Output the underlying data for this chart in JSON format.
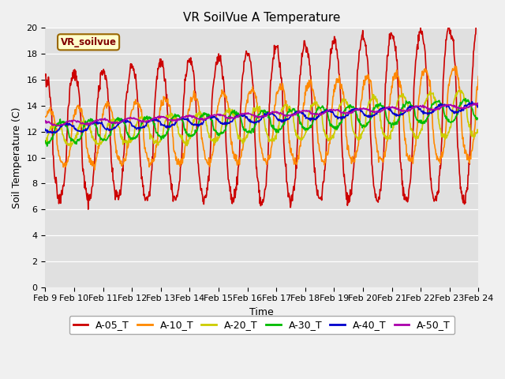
{
  "title": "VR SoilVue A Temperature",
  "xlabel": "Time",
  "ylabel": "Soil Temperature (C)",
  "ylim": [
    0,
    20
  ],
  "yticks": [
    0,
    2,
    4,
    6,
    8,
    10,
    12,
    14,
    16,
    18,
    20
  ],
  "x_labels": [
    "Feb 9",
    "Feb 10",
    "Feb 11",
    "Feb 12",
    "Feb 13",
    "Feb 14",
    "Feb 15",
    "Feb 16",
    "Feb 17",
    "Feb 18",
    "Feb 19",
    "Feb 20",
    "Feb 21",
    "Feb 22",
    "Feb 23",
    "Feb 24"
  ],
  "series_names": [
    "A-05_T",
    "A-10_T",
    "A-20_T",
    "A-30_T",
    "A-40_T",
    "A-50_T"
  ],
  "series_colors": [
    "#cc0000",
    "#ff8800",
    "#cccc00",
    "#00bb00",
    "#0000cc",
    "#aa00aa"
  ],
  "series_linewidths": [
    1.2,
    1.2,
    1.2,
    1.2,
    1.2,
    1.2
  ],
  "background_color": "#e0e0e0",
  "fig_bg_color": "#f0f0f0",
  "title_fontsize": 11,
  "axis_label_fontsize": 9,
  "tick_fontsize": 8,
  "vr_label": "VR_soilvue",
  "vr_label_color": "#800000",
  "vr_box_color": "#ffffcc",
  "vr_box_edge": "#996600",
  "legend_fontsize": 9,
  "n_points": 960,
  "n_days": 15,
  "depths_amplitudes": [
    5.5,
    3.0,
    1.5,
    0.8,
    0.3,
    0.15
  ],
  "depths_phase_lags": [
    0.0,
    0.15,
    0.35,
    0.55,
    0.75,
    0.95
  ],
  "base_trend_start": [
    11.5,
    11.5,
    11.7,
    11.9,
    12.2,
    12.6
  ],
  "base_trend_end": [
    13.5,
    13.5,
    13.5,
    13.7,
    13.9,
    14.0
  ]
}
